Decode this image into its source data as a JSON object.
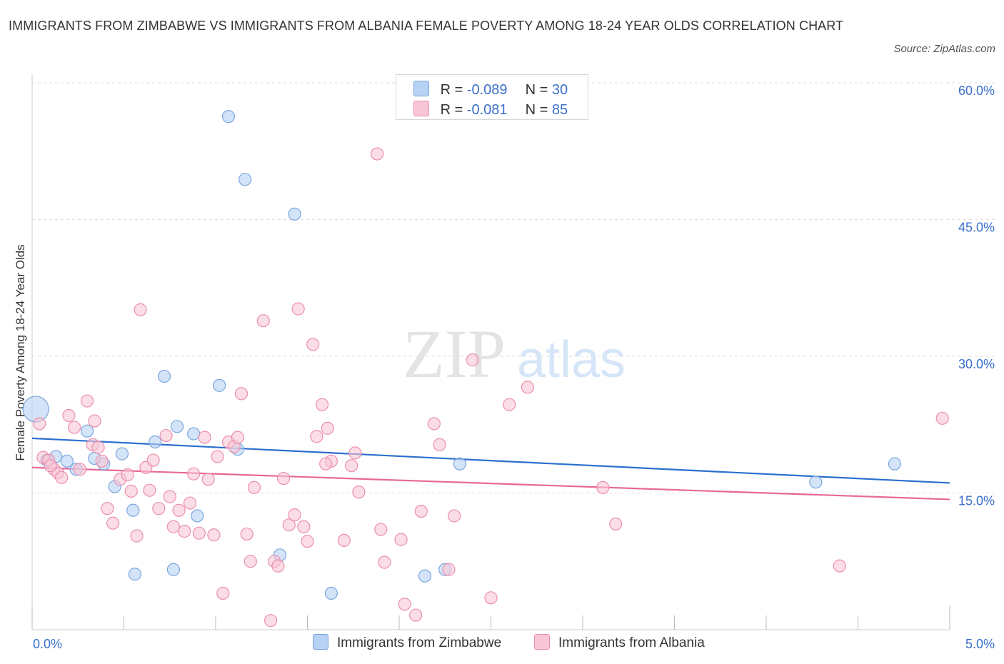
{
  "title": "IMMIGRANTS FROM ZIMBABWE VS IMMIGRANTS FROM ALBANIA FEMALE POVERTY AMONG 18-24 YEAR OLDS CORRELATION CHART",
  "source": "Source: ZipAtlas.com",
  "watermark": {
    "zip": "ZIP",
    "atlas": "atlas"
  },
  "legend": {
    "r_label": "R =",
    "n_label": "N =",
    "rows": [
      {
        "r": "-0.089",
        "n": "30",
        "color": "#aecbf2"
      },
      {
        "r": "-0.081",
        "n": "85",
        "color": "#f7c0d3"
      }
    ]
  },
  "bottom_legend": {
    "zimbabwe": "Immigrants from Zimbabwe",
    "albania": "Immigrants from Albania"
  },
  "colors": {
    "zimbabwe_fill": "#b8d2f4",
    "zimbabwe_stroke": "#7aa6e0",
    "zimbabwe_line": "#2b6fcf",
    "albania_fill": "#f8c6d6",
    "albania_stroke": "#eb8fae",
    "albania_line": "#e8689a",
    "axis_text": "#3a6fcc",
    "grid": "#dcdcdc"
  },
  "chart_data": {
    "type": "scatter",
    "title": "IMMIGRANTS FROM ZIMBABWE VS IMMIGRANTS FROM ALBANIA FEMALE POVERTY AMONG 18-24 YEAR OLDS CORRELATION CHART",
    "xlabel": "",
    "ylabel": "Female Poverty Among 18-24 Year Olds",
    "xlim": [
      0,
      5
    ],
    "ylim": [
      0,
      60
    ],
    "x_tick_labels": [
      "0.0%",
      "5.0%"
    ],
    "y_ticks": [
      15,
      30,
      45,
      60
    ],
    "y_tick_labels": [
      "15.0%",
      "30.0%",
      "45.0%",
      "60.0%"
    ],
    "grid": true,
    "legend_position": "top-center",
    "series": [
      {
        "name": "Immigrants from Zimbabwe",
        "r": -0.089,
        "n": 30,
        "trend": [
          [
            0,
            21.0
          ],
          [
            5,
            16.1
          ]
        ],
        "points": [
          [
            0.02,
            24.2,
            "large"
          ],
          [
            0.08,
            18.6
          ],
          [
            0.13,
            19.0
          ],
          [
            0.19,
            18.5
          ],
          [
            0.24,
            17.6
          ],
          [
            0.3,
            21.8
          ],
          [
            0.34,
            18.8
          ],
          [
            0.39,
            18.2
          ],
          [
            0.49,
            19.3
          ],
          [
            0.45,
            15.7
          ],
          [
            0.55,
            13.1
          ],
          [
            0.56,
            6.1
          ],
          [
            0.67,
            20.6
          ],
          [
            0.72,
            27.8
          ],
          [
            0.77,
            6.6
          ],
          [
            0.79,
            22.3
          ],
          [
            0.88,
            21.5
          ],
          [
            0.9,
            12.5
          ],
          [
            1.02,
            26.8
          ],
          [
            1.07,
            56.3
          ],
          [
            1.12,
            19.8
          ],
          [
            1.16,
            49.4
          ],
          [
            1.35,
            8.2
          ],
          [
            1.43,
            45.6
          ],
          [
            1.63,
            4.0
          ],
          [
            2.14,
            5.9
          ],
          [
            2.25,
            6.6
          ],
          [
            2.33,
            18.2
          ],
          [
            4.27,
            16.2
          ],
          [
            4.7,
            18.2
          ]
        ]
      },
      {
        "name": "Immigrants from Albania",
        "r": -0.081,
        "n": 85,
        "trend": [
          [
            0,
            17.8
          ],
          [
            5,
            14.3
          ]
        ],
        "points": [
          [
            0.04,
            22.6
          ],
          [
            0.06,
            18.9
          ],
          [
            0.09,
            18.6
          ],
          [
            0.12,
            17.6
          ],
          [
            0.14,
            17.2
          ],
          [
            0.16,
            16.7
          ],
          [
            0.2,
            23.5
          ],
          [
            0.23,
            22.2
          ],
          [
            0.26,
            17.6
          ],
          [
            0.3,
            25.1
          ],
          [
            0.33,
            20.3
          ],
          [
            0.36,
            20.0
          ],
          [
            0.38,
            18.5
          ],
          [
            0.41,
            13.3
          ],
          [
            0.44,
            11.7
          ],
          [
            0.48,
            16.5
          ],
          [
            0.52,
            17.0
          ],
          [
            0.54,
            15.2
          ],
          [
            0.57,
            10.3
          ],
          [
            0.59,
            35.1
          ],
          [
            0.62,
            17.8
          ],
          [
            0.64,
            15.3
          ],
          [
            0.66,
            18.6
          ],
          [
            0.69,
            13.3
          ],
          [
            0.73,
            21.3
          ],
          [
            0.75,
            14.6
          ],
          [
            0.77,
            11.3
          ],
          [
            0.8,
            13.1
          ],
          [
            0.83,
            10.8
          ],
          [
            0.86,
            13.9
          ],
          [
            0.88,
            17.1
          ],
          [
            0.91,
            10.6
          ],
          [
            0.94,
            21.1
          ],
          [
            0.96,
            16.5
          ],
          [
            0.99,
            10.4
          ],
          [
            1.01,
            19.0
          ],
          [
            1.04,
            4.0
          ],
          [
            1.07,
            20.6
          ],
          [
            1.1,
            20.1
          ],
          [
            1.12,
            21.1
          ],
          [
            1.14,
            25.9
          ],
          [
            1.17,
            10.5
          ],
          [
            1.19,
            7.5
          ],
          [
            1.21,
            15.6
          ],
          [
            1.26,
            33.9
          ],
          [
            1.3,
            1.0
          ],
          [
            1.32,
            7.5
          ],
          [
            1.34,
            7.0
          ],
          [
            1.37,
            16.6
          ],
          [
            1.4,
            11.5
          ],
          [
            1.43,
            12.6
          ],
          [
            1.45,
            35.2
          ],
          [
            1.48,
            11.3
          ],
          [
            1.5,
            9.7
          ],
          [
            1.53,
            31.3
          ],
          [
            1.55,
            21.2
          ],
          [
            1.58,
            24.7
          ],
          [
            1.61,
            22.1
          ],
          [
            1.63,
            18.5
          ],
          [
            1.7,
            9.8
          ],
          [
            1.74,
            18.0
          ],
          [
            1.76,
            19.4
          ],
          [
            1.78,
            15.1
          ],
          [
            1.88,
            52.2
          ],
          [
            1.9,
            11.0
          ],
          [
            1.92,
            7.4
          ],
          [
            2.01,
            9.9
          ],
          [
            2.03,
            2.8
          ],
          [
            2.09,
            1.6
          ],
          [
            2.12,
            13.0
          ],
          [
            2.19,
            22.6
          ],
          [
            2.22,
            20.3
          ],
          [
            2.27,
            6.6
          ],
          [
            2.3,
            12.5
          ],
          [
            2.4,
            29.6
          ],
          [
            2.5,
            3.5
          ],
          [
            2.6,
            24.7
          ],
          [
            2.7,
            26.6
          ],
          [
            3.11,
            15.6
          ],
          [
            3.18,
            11.6
          ],
          [
            4.4,
            7.0
          ],
          [
            4.96,
            23.2
          ],
          [
            0.1,
            18.0
          ],
          [
            0.34,
            22.9
          ],
          [
            1.6,
            18.2
          ]
        ]
      }
    ]
  }
}
